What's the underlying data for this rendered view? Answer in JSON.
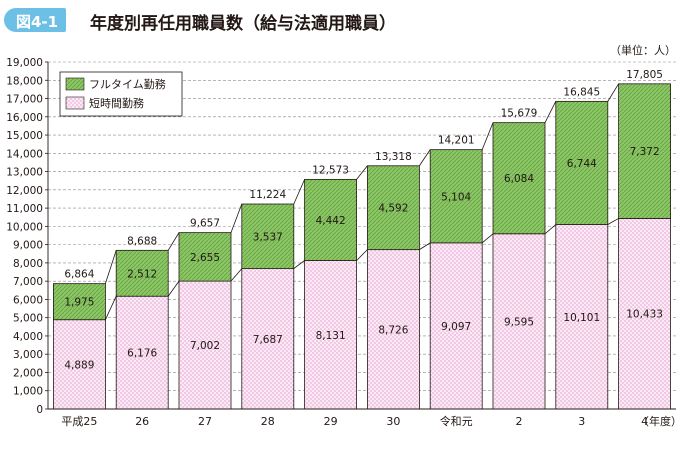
{
  "figure_label": "図4-1",
  "title": "年度別再任用職員数（給与法適用職員）",
  "unit_label": "（単位：人）",
  "xaxis_suffix": "（年度）",
  "colors": {
    "badge": "#6cc0e5",
    "fulltime": "#8cc566",
    "fulltime_hatch": "#5d9e3a",
    "shorttime": "#fbeaf5",
    "shorttime_dot": "#d889c4",
    "grid": "#8a8a8a"
  },
  "chart_data": {
    "type": "bar",
    "stacked": true,
    "categories": [
      "平成25",
      "26",
      "27",
      "28",
      "29",
      "30",
      "令和元",
      "2",
      "3",
      "4"
    ],
    "series": [
      {
        "name": "短時間勤務",
        "values": [
          4889,
          6176,
          7002,
          7687,
          8131,
          8726,
          9097,
          9595,
          10101,
          10433
        ]
      },
      {
        "name": "フルタイム勤務",
        "values": [
          1975,
          2512,
          2655,
          3537,
          4442,
          4592,
          5104,
          6084,
          6744,
          7372
        ]
      }
    ],
    "totals": [
      6864,
      8688,
      9657,
      11224,
      12573,
      13318,
      14201,
      15679,
      16845,
      17805
    ],
    "ylim": [
      0,
      19000
    ],
    "ytick_step": 1000,
    "legend": "top-left",
    "grid": true
  }
}
